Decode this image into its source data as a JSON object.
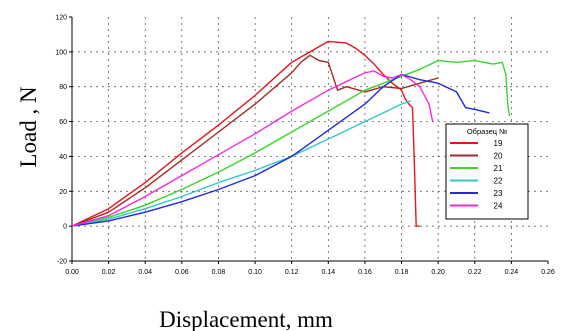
{
  "chart_data": {
    "type": "line",
    "title": "",
    "xlabel": "Displacement, mm",
    "ylabel": "Load , N",
    "xlim": [
      0,
      0.26
    ],
    "ylim": [
      -20,
      120
    ],
    "x_ticks": [
      "0.00",
      "0.02",
      "0.04",
      "0.06",
      "0.08",
      "0.10",
      "0.12",
      "0.14",
      "0.16",
      "0.18",
      "0.20",
      "0.22",
      "0.24",
      "0.26"
    ],
    "y_ticks": [
      "-20",
      "0",
      "20",
      "40",
      "60",
      "80",
      "100",
      "120"
    ],
    "grid": "dashed",
    "legend": {
      "title": "Образец №",
      "placement": "right"
    },
    "series": [
      {
        "name": "19",
        "color": "#e8141a",
        "points": [
          [
            0,
            0
          ],
          [
            0.02,
            10
          ],
          [
            0.04,
            25
          ],
          [
            0.06,
            42
          ],
          [
            0.08,
            58
          ],
          [
            0.1,
            75
          ],
          [
            0.12,
            94
          ],
          [
            0.13,
            100
          ],
          [
            0.14,
            106
          ],
          [
            0.15,
            105
          ],
          [
            0.155,
            102
          ],
          [
            0.16,
            98
          ],
          [
            0.165,
            93
          ],
          [
            0.17,
            87
          ],
          [
            0.175,
            82
          ],
          [
            0.18,
            78
          ],
          [
            0.182,
            73
          ],
          [
            0.184,
            70
          ],
          [
            0.186,
            68
          ],
          [
            0.187,
            35
          ],
          [
            0.188,
            0
          ],
          [
            0.19,
            0
          ]
        ]
      },
      {
        "name": "20",
        "color": "#a32a22",
        "points": [
          [
            0,
            0
          ],
          [
            0.02,
            8
          ],
          [
            0.04,
            22
          ],
          [
            0.06,
            38
          ],
          [
            0.08,
            54
          ],
          [
            0.1,
            70
          ],
          [
            0.12,
            88
          ],
          [
            0.125,
            94
          ],
          [
            0.13,
            98
          ],
          [
            0.135,
            95
          ],
          [
            0.14,
            94
          ],
          [
            0.145,
            78
          ],
          [
            0.15,
            80
          ],
          [
            0.16,
            77
          ],
          [
            0.17,
            80
          ],
          [
            0.18,
            79
          ],
          [
            0.19,
            82
          ],
          [
            0.2,
            85
          ]
        ]
      },
      {
        "name": "21",
        "color": "#37d62a",
        "points": [
          [
            0,
            0
          ],
          [
            0.02,
            5
          ],
          [
            0.04,
            12
          ],
          [
            0.06,
            21
          ],
          [
            0.08,
            31
          ],
          [
            0.1,
            42
          ],
          [
            0.12,
            54
          ],
          [
            0.14,
            66
          ],
          [
            0.16,
            78
          ],
          [
            0.18,
            86
          ],
          [
            0.19,
            90
          ],
          [
            0.2,
            95
          ],
          [
            0.21,
            94
          ],
          [
            0.22,
            95
          ],
          [
            0.23,
            93
          ],
          [
            0.235,
            94
          ],
          [
            0.237,
            87
          ],
          [
            0.238,
            70
          ],
          [
            0.239,
            63
          ]
        ]
      },
      {
        "name": "22",
        "color": "#32c8c8",
        "points": [
          [
            0,
            0
          ],
          [
            0.02,
            4
          ],
          [
            0.04,
            10
          ],
          [
            0.06,
            17
          ],
          [
            0.08,
            25
          ],
          [
            0.1,
            32
          ],
          [
            0.12,
            40
          ],
          [
            0.14,
            50
          ],
          [
            0.16,
            60
          ],
          [
            0.17,
            65
          ],
          [
            0.18,
            70
          ],
          [
            0.185,
            72
          ]
        ]
      },
      {
        "name": "23",
        "color": "#1e2bd6",
        "points": [
          [
            0,
            0
          ],
          [
            0.02,
            3
          ],
          [
            0.04,
            8
          ],
          [
            0.06,
            14
          ],
          [
            0.08,
            21
          ],
          [
            0.1,
            29
          ],
          [
            0.12,
            40
          ],
          [
            0.14,
            55
          ],
          [
            0.16,
            70
          ],
          [
            0.17,
            80
          ],
          [
            0.18,
            87
          ],
          [
            0.19,
            84
          ],
          [
            0.2,
            82
          ],
          [
            0.21,
            77
          ],
          [
            0.215,
            68
          ],
          [
            0.22,
            67
          ],
          [
            0.228,
            65
          ]
        ]
      },
      {
        "name": "24",
        "color": "#f22ae1",
        "points": [
          [
            0,
            0
          ],
          [
            0.02,
            6
          ],
          [
            0.04,
            17
          ],
          [
            0.06,
            29
          ],
          [
            0.08,
            41
          ],
          [
            0.1,
            53
          ],
          [
            0.12,
            66
          ],
          [
            0.14,
            78
          ],
          [
            0.16,
            88
          ],
          [
            0.165,
            89
          ],
          [
            0.17,
            86
          ],
          [
            0.175,
            85
          ],
          [
            0.18,
            87
          ],
          [
            0.185,
            84
          ],
          [
            0.19,
            80
          ],
          [
            0.195,
            70
          ],
          [
            0.197,
            60
          ]
        ]
      }
    ]
  }
}
